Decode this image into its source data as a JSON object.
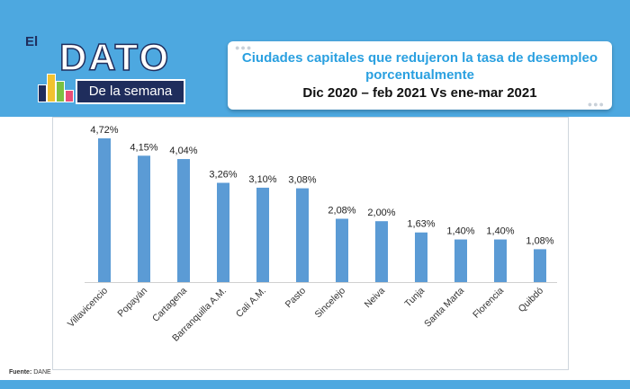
{
  "logo": {
    "el": "El",
    "dato": "DATO",
    "subtitle": "De la semana"
  },
  "title": {
    "line1": "Ciudades capitales que redujeron la tasa de desempleo porcentualmente",
    "line2": "Dic 2020 – feb 2021 Vs ene-mar 2021"
  },
  "source": {
    "label": "Fuente:",
    "value": "DANE"
  },
  "colors": {
    "band": "#4da8e0",
    "bar": "#5b9bd5",
    "title_accent": "#2aa0e0",
    "logo_navy": "#1f2d5c"
  },
  "chart_data": {
    "type": "bar",
    "categories": [
      "Villavicencio",
      "Popayán",
      "Cartagena",
      "Barranquilla A.M.",
      "Cali A.M.",
      "Pasto",
      "Sincelejo",
      "Neiva",
      "Tunja",
      "Santa Marta",
      "Florencia",
      "Quibdó"
    ],
    "values": [
      4.72,
      4.15,
      4.04,
      3.26,
      3.1,
      3.08,
      2.08,
      2.0,
      1.63,
      1.4,
      1.4,
      1.08
    ],
    "data_labels": [
      "4,72%",
      "4,15%",
      "4,04%",
      "3,26%",
      "3,10%",
      "3,08%",
      "2,08%",
      "2,00%",
      "1,63%",
      "1,40%",
      "1,40%",
      "1,08%"
    ],
    "title": "",
    "xlabel": "",
    "ylabel": "",
    "ylim": [
      0,
      5
    ],
    "grid": false,
    "legend": "none"
  }
}
